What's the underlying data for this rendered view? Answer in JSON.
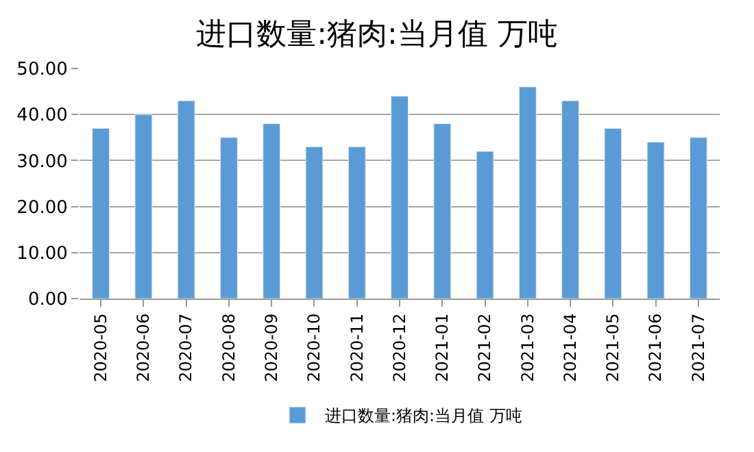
{
  "chart_data": {
    "type": "bar",
    "title": "进口数量:猪肉:当月值 万吨",
    "categories": [
      "2020-05",
      "2020-06",
      "2020-07",
      "2020-08",
      "2020-09",
      "2020-10",
      "2020-11",
      "2020-12",
      "2021-01",
      "2021-02",
      "2021-03",
      "2021-04",
      "2021-05",
      "2021-06",
      "2021-07"
    ],
    "series": [
      {
        "name": "进口数量:猪肉:当月值 万吨",
        "color": "#5b9bd5",
        "values": [
          37,
          40,
          43,
          35,
          38,
          33,
          33,
          44,
          38,
          32,
          46,
          43,
          37,
          34,
          35
        ]
      }
    ],
    "ylim": [
      0,
      50
    ],
    "yticks": [
      {
        "value": 0,
        "label": "0.00"
      },
      {
        "value": 10,
        "label": "10.00"
      },
      {
        "value": 20,
        "label": "20.00"
      },
      {
        "value": 30,
        "label": "30.00"
      },
      {
        "value": 40,
        "label": "40.00"
      },
      {
        "value": 50,
        "label": "50.00"
      }
    ],
    "grid": "y",
    "legend": "bottom"
  }
}
